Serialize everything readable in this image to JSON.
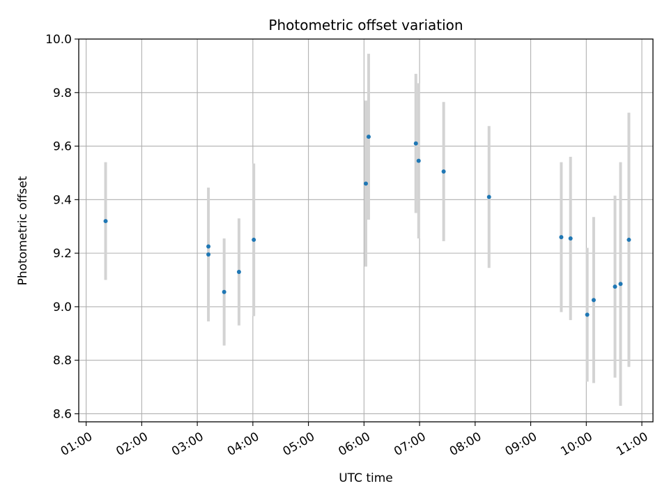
{
  "chart_data": {
    "type": "scatter",
    "title": "Photometric offset variation",
    "xlabel": "UTC time",
    "ylabel": "Photometric offset",
    "x_unit": "hours (UTC)",
    "xlim": [
      "00:52",
      "11:12"
    ],
    "ylim": [
      8.57,
      10.0
    ],
    "x_ticks": [
      "01:00",
      "02:00",
      "03:00",
      "04:00",
      "05:00",
      "06:00",
      "07:00",
      "08:00",
      "09:00",
      "10:00",
      "11:00"
    ],
    "y_ticks": [
      "8.6",
      "8.8",
      "9.0",
      "9.2",
      "9.4",
      "9.6",
      "9.8",
      "10.0"
    ],
    "grid": true,
    "point_color": "#1f77b4",
    "errorbar_color": "#d3d3d3",
    "points": [
      {
        "x": "01:21",
        "y": 9.32,
        "err": 0.22
      },
      {
        "x": "03:12",
        "y": 9.225,
        "err": 0.0
      },
      {
        "x": "03:12",
        "y": 9.195,
        "err": 0.25
      },
      {
        "x": "03:29",
        "y": 9.055,
        "err": 0.2
      },
      {
        "x": "03:45",
        "y": 9.13,
        "err": 0.2
      },
      {
        "x": "04:01",
        "y": 9.25,
        "err": 0.285
      },
      {
        "x": "06:02",
        "y": 9.46,
        "err": 0.31
      },
      {
        "x": "06:05",
        "y": 9.635,
        "err": 0.31
      },
      {
        "x": "06:56",
        "y": 9.61,
        "err": 0.26
      },
      {
        "x": "06:59",
        "y": 9.545,
        "err": 0.29
      },
      {
        "x": "07:26",
        "y": 9.505,
        "err": 0.26
      },
      {
        "x": "08:15",
        "y": 9.41,
        "err": 0.265
      },
      {
        "x": "09:33",
        "y": 9.26,
        "err": 0.28
      },
      {
        "x": "09:43",
        "y": 9.255,
        "err": 0.305
      },
      {
        "x": "10:01",
        "y": 8.97,
        "err": 0.25
      },
      {
        "x": "10:08",
        "y": 9.025,
        "err": 0.31
      },
      {
        "x": "10:31",
        "y": 9.075,
        "err": 0.34
      },
      {
        "x": "10:37",
        "y": 9.085,
        "err": 0.455
      },
      {
        "x": "10:46",
        "y": 9.25,
        "err": 0.475
      }
    ]
  }
}
